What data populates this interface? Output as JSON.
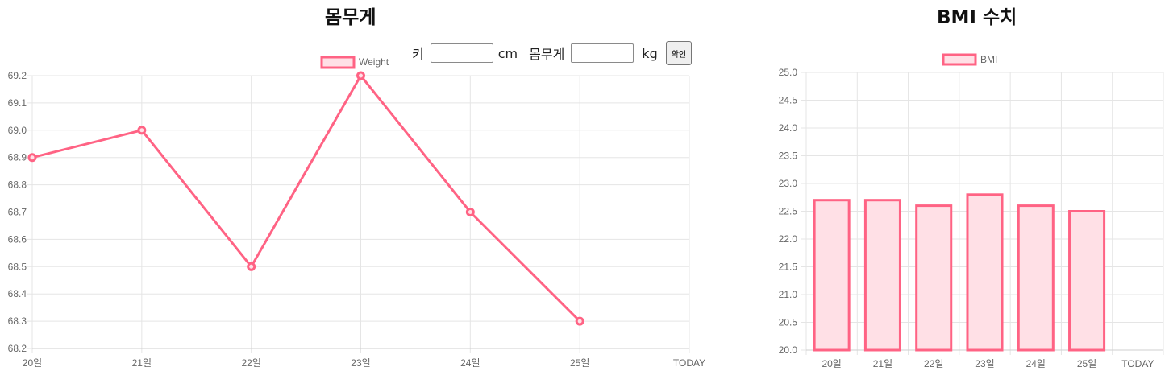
{
  "titles": {
    "weight": "몸무게",
    "bmi": "BMI 수치"
  },
  "form": {
    "height_label": "키",
    "height_unit": "cm",
    "weight_label": "몸무게",
    "weight_unit": "kg",
    "submit_label": "확인",
    "height_value": "",
    "weight_value": ""
  },
  "colors": {
    "series": "#ff6384",
    "series_fill": "#ffe0e6",
    "grid": "#e5e5e5",
    "text": "#666666"
  },
  "chart_data": [
    {
      "type": "line",
      "title": "몸무게",
      "categories": [
        "20일",
        "21일",
        "22일",
        "23일",
        "24일",
        "25일",
        "TODAY"
      ],
      "series": [
        {
          "name": "Weight",
          "values": [
            68.9,
            69.0,
            68.5,
            69.2,
            68.7,
            68.3,
            null
          ]
        }
      ],
      "ylim": [
        68.2,
        69.2
      ],
      "ystep": 0.1,
      "grid": true,
      "legend": "top"
    },
    {
      "type": "bar",
      "title": "BMI 수치",
      "categories": [
        "20일",
        "21일",
        "22일",
        "23일",
        "24일",
        "25일",
        "TODAY"
      ],
      "series": [
        {
          "name": "BMI",
          "values": [
            22.7,
            22.7,
            22.6,
            22.8,
            22.6,
            22.5,
            null
          ]
        }
      ],
      "ylim": [
        20.0,
        25.0
      ],
      "ystep": 0.5,
      "grid": true,
      "legend": "top"
    }
  ]
}
